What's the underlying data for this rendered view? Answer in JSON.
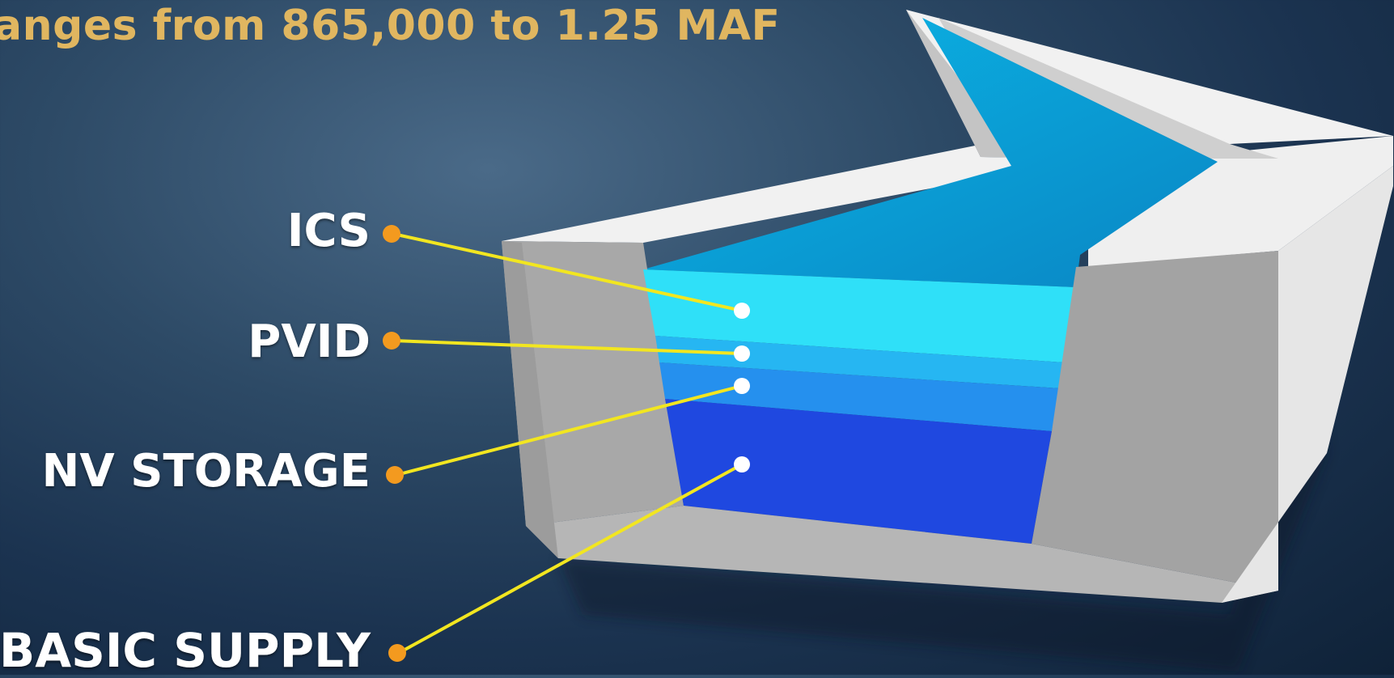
{
  "title": "anges from 865,000 to 1.25 MAF",
  "colors": {
    "title": "#e0b660",
    "connector_line": "#f2e620",
    "connector_dot_left": "#f39a1f",
    "connector_dot_right": "#ffffff",
    "wall_light": "#eeeeee",
    "wall_mid": "#bdbdbd",
    "wall_dark": "#9a9a9a",
    "layer_ics": "#2fe0f8",
    "layer_pvid": "#26b6f2",
    "layer_nv_storage": "#2590ee",
    "layer_basic_supply": "#1f48e0",
    "channel_far": "#0aa0d8"
  },
  "labels": [
    {
      "id": "ics",
      "text": "ICS"
    },
    {
      "id": "pvid",
      "text": "PVID"
    },
    {
      "id": "nv_storage",
      "text": "NV STORAGE"
    },
    {
      "id": "basic_supply",
      "text": "BASIC SUPPLY"
    }
  ]
}
